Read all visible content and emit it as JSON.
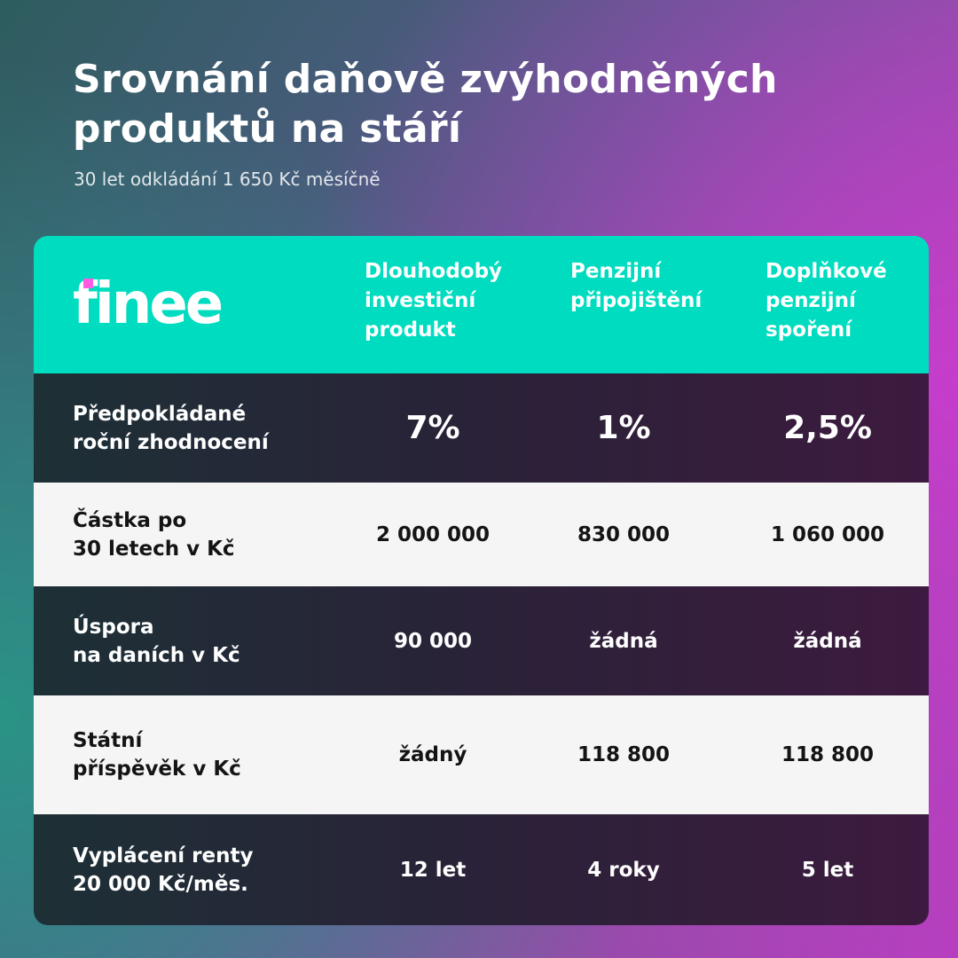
{
  "title": "Srovnání daňově zvýhodněných\nproduktů na stáří",
  "subtitle": "30 let odkládání 1 650 Kč měsíčně",
  "colors": {
    "header_teal": "#00dcbf",
    "logo_dot": "#ff5be3",
    "row_light": "#f5f5f5"
  },
  "logo": {
    "text": "finee"
  },
  "table": {
    "columns": [
      "Dlouhodobý\ninvestiční\nprodukt",
      "Penzijní\npřipojištění",
      "Doplňkové\npenzijní\nspoření"
    ],
    "rows": [
      {
        "label": "Předpokládané\nroční zhodnocení",
        "values": [
          "7%",
          "1%",
          "2,5%"
        ]
      },
      {
        "label": "Částka po\n30 letech v Kč",
        "values": [
          "2 000 000",
          "830 000",
          "1 060 000"
        ]
      },
      {
        "label": "Úspora\nna daních v Kč",
        "values": [
          "90 000",
          "žádná",
          "žádná"
        ]
      },
      {
        "label": "Státní\npříspěvěk v Kč",
        "values": [
          "žádný",
          "118 800",
          "118 800"
        ]
      },
      {
        "label": "Vyplácení renty\n20 000 Kč/měs.",
        "values": [
          "12 let",
          "4 roky",
          "5 let"
        ]
      }
    ]
  }
}
